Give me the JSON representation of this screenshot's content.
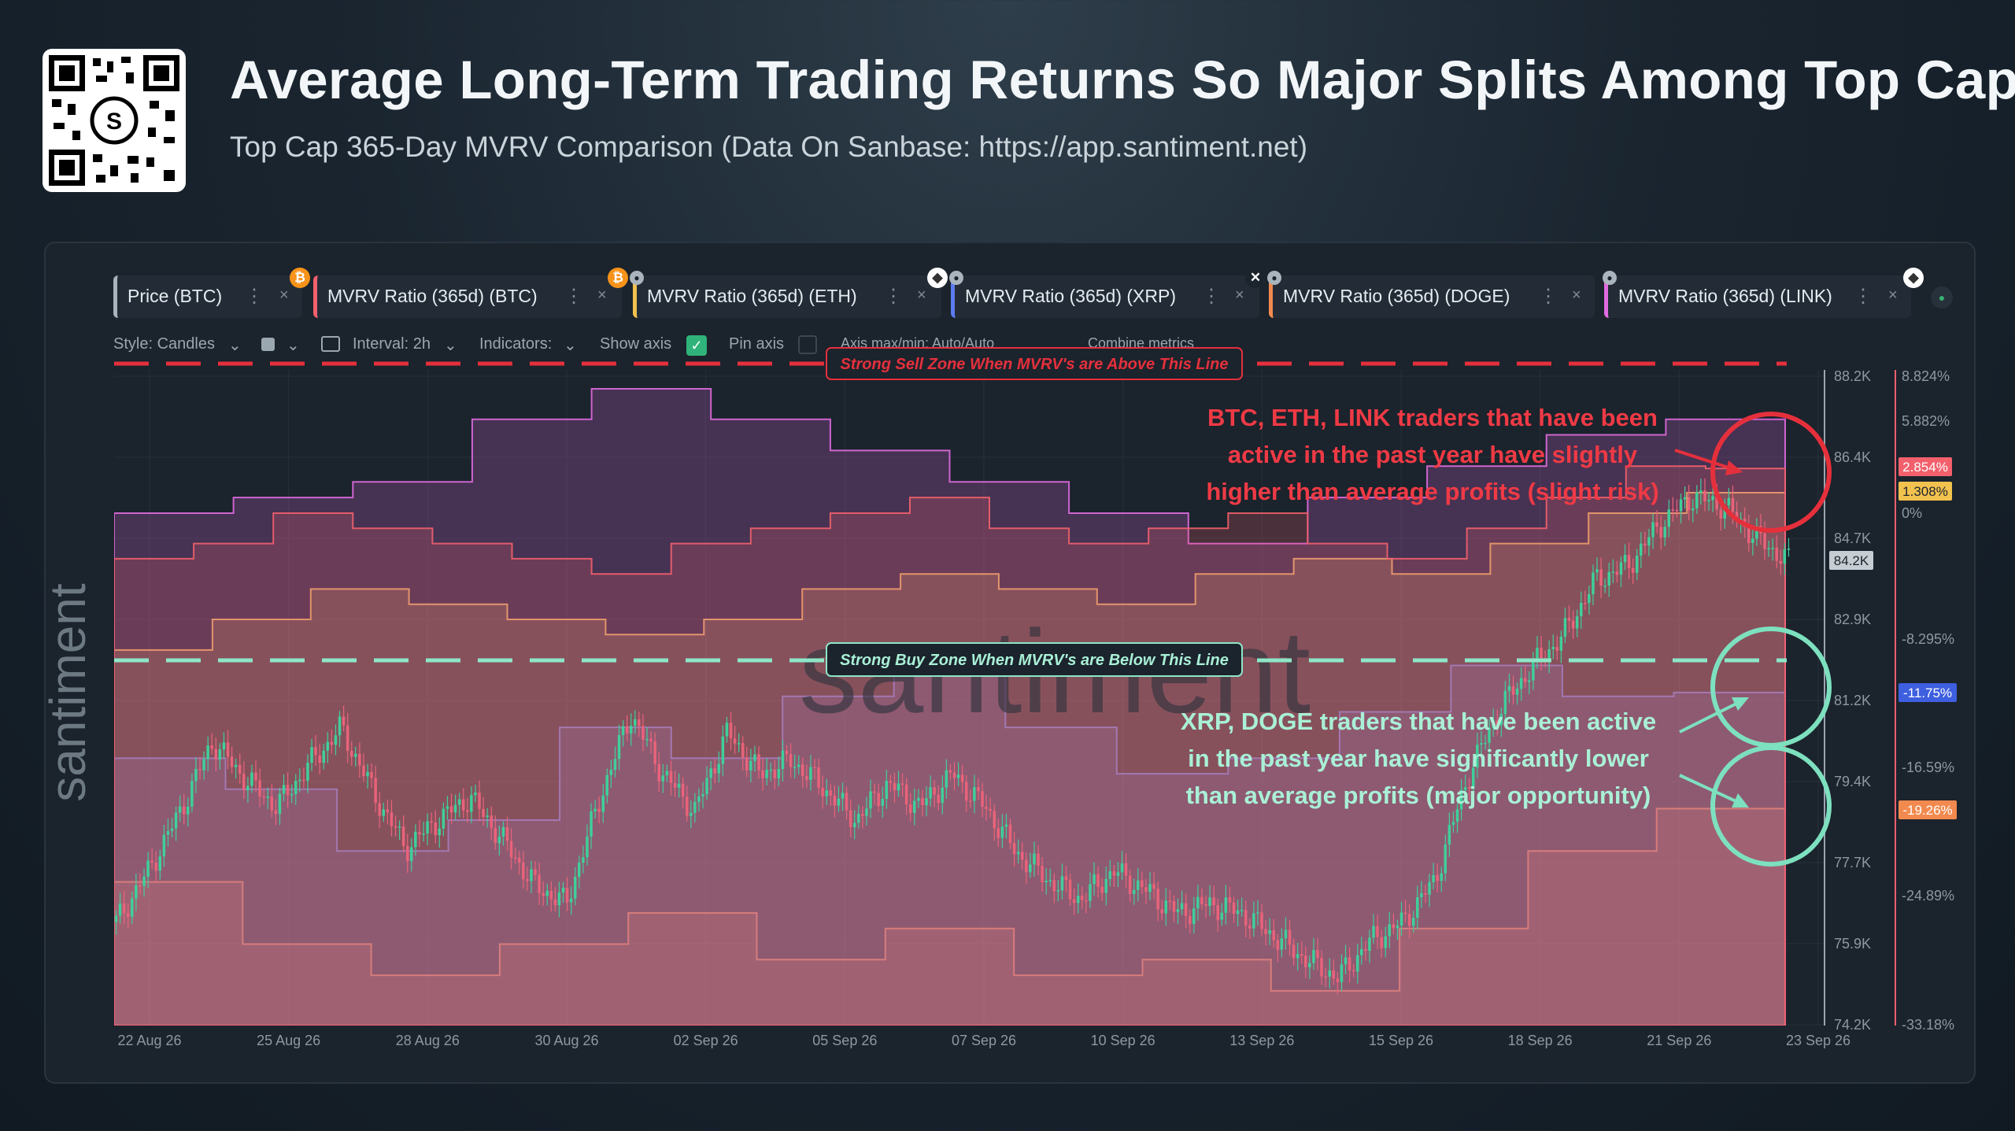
{
  "header": {
    "title": "Average Long-Term Trading Returns So Major Splits Among Top Caps",
    "subtitle": "Top Cap 365-Day MVRV Comparison (Data On Sanbase: https://app.santiment.net)"
  },
  "tabs": [
    {
      "label": "Price (BTC)",
      "color": "#aab4bd",
      "icon": "bitcoin-icon"
    },
    {
      "label": "MVRV Ratio (365d) (BTC)",
      "color": "#f2606c",
      "icon": "bitcoin-icon"
    },
    {
      "label": "MVRV Ratio (365d) (ETH)",
      "color": "#f2c24f",
      "icon": "ethereum-icon"
    },
    {
      "label": "MVRV Ratio (365d) (XRP)",
      "color": "#5b7cf0",
      "icon": "xrp-icon"
    },
    {
      "label": "MVRV Ratio (365d) (DOGE)",
      "color": "#f28a4f",
      "icon": "doge-icon"
    },
    {
      "label": "MVRV Ratio (365d) (LINK)",
      "color": "#e06be0",
      "icon": "link-icon"
    }
  ],
  "toolbar": {
    "style": "Style: Candles",
    "interval": "Interval: 2h",
    "indicators": "Indicators:",
    "show_axis": "Show axis",
    "pin_axis": "Pin axis",
    "axis_maxmin": "Axis max/min: Auto/Auto",
    "combine": "Combine metrics"
  },
  "watermark": "santiment",
  "annotations": {
    "sell_zone": "Strong Sell Zone When MVRV's are Above This Line",
    "buy_zone": "Strong Buy Zone When MVRV's are Below This Line",
    "red_note": [
      "BTC, ETH, LINK traders that have been",
      "active in the past year have slightly",
      "higher than average profits (slight risk)"
    ],
    "green_note": [
      "XRP, DOGE traders that have been active",
      "in the past year have significantly lower",
      "than average profits (major opportunity)"
    ]
  },
  "chart_data": {
    "type": "line",
    "x_ticks": [
      "22 Aug 26",
      "25 Aug 26",
      "28 Aug 26",
      "30 Aug 26",
      "02 Sep 26",
      "05 Sep 26",
      "07 Sep 26",
      "10 Sep 26",
      "13 Sep 26",
      "15 Sep 26",
      "18 Sep 26",
      "21 Sep 26",
      "23 Sep 26"
    ],
    "price_axis": {
      "ticks": [
        "88.2K",
        "86.4K",
        "84.7K",
        "82.9K",
        "81.2K",
        "79.4K",
        "77.7K",
        "75.9K",
        "74.2K"
      ],
      "ylim": [
        74.2,
        88.2
      ],
      "unit": "K USD"
    },
    "mvrv_axis": {
      "ticks": [
        "8.824%",
        "5.882%",
        "0%",
        "-8.295%",
        "-16.59%",
        "-24.89%",
        "-33.18%"
      ]
    },
    "last_values": {
      "BTC price": "84.2K",
      "BTC MVRV": "2.854%",
      "ETH MVRV": "1.308%",
      "XRP MVRV": "-11.75%",
      "DOGE MVRV": "-19.26%"
    },
    "sell_line_pct": 8.824,
    "buy_line_pct": -8.295,
    "series": [
      {
        "name": "Price (BTC)",
        "values_k": [
          76.4,
          77.5,
          78.8,
          80.3,
          79.5,
          78.9,
          79.8,
          80.6,
          79.2,
          78.0,
          78.6,
          79.1,
          78.2,
          77.2,
          76.8,
          79.0,
          80.9,
          79.6,
          78.8,
          80.5,
          79.6,
          79.9,
          79.3,
          78.6,
          79.4,
          78.9,
          79.6,
          78.9,
          77.9,
          77.3,
          76.9,
          77.5,
          77.1,
          76.6,
          76.8,
          76.6,
          76.1,
          75.6,
          75.2,
          76.0,
          76.4,
          77.3,
          79.5,
          81.0,
          81.9,
          82.6,
          83.8,
          84.1,
          85.0,
          85.6,
          85.4,
          84.7,
          84.2
        ]
      },
      {
        "name": "MVRV Ratio (365d) (BTC)",
        "values_pct": [
          -3,
          -2,
          0,
          -1,
          -2,
          -3,
          -4,
          -2,
          -1,
          0,
          1,
          -1,
          -2,
          -1,
          0,
          -2,
          -3,
          -1,
          1,
          3,
          2.854
        ]
      },
      {
        "name": "MVRV Ratio (365d) (ETH)",
        "values_pct": [
          -9,
          -7,
          -5,
          -6,
          -7,
          -8,
          -7,
          -5,
          -4,
          -5,
          -6,
          -4,
          -3,
          -4,
          -2,
          0,
          1.308
        ]
      },
      {
        "name": "MVRV Ratio (365d) (XRP)",
        "values_pct": [
          -16,
          -18,
          -22,
          -20,
          -14,
          -16,
          -12,
          -10,
          -14,
          -17,
          -16,
          -13,
          -10,
          -12,
          -11.75
        ]
      },
      {
        "name": "MVRV Ratio (365d) (DOGE)",
        "values_pct": [
          -24,
          -28,
          -30,
          -28,
          -26,
          -29,
          -27,
          -30,
          -29,
          -31,
          -27,
          -22,
          -19.26
        ]
      },
      {
        "name": "MVRV Ratio (365d) (LINK)",
        "values_pct": [
          0,
          1,
          2,
          6,
          8,
          6,
          4,
          2,
          0,
          -2,
          1,
          3,
          5,
          6
        ]
      }
    ]
  }
}
